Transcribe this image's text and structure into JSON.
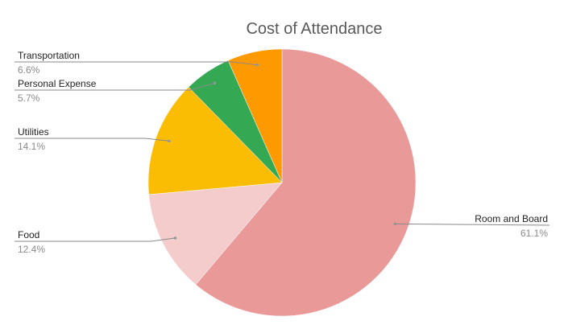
{
  "chart_data": {
    "type": "pie",
    "title": "Cost of Attendance",
    "start_angle_deg": 0,
    "direction": "clockwise",
    "slices": [
      {
        "label": "Room and Board",
        "value": 61.1,
        "pct_text": "61.1%",
        "color": "#ea9999"
      },
      {
        "label": "Food",
        "value": 12.4,
        "pct_text": "12.4%",
        "color": "#f4cccc"
      },
      {
        "label": "Utilities",
        "value": 14.1,
        "pct_text": "14.1%",
        "color": "#fbbc04"
      },
      {
        "label": "Personal Expense",
        "value": 5.7,
        "pct_text": "5.7%",
        "color": "#34a853"
      },
      {
        "label": "Transportation",
        "value": 6.6,
        "pct_text": "6.6%",
        "color": "#ff9900"
      }
    ],
    "legend": "none"
  }
}
